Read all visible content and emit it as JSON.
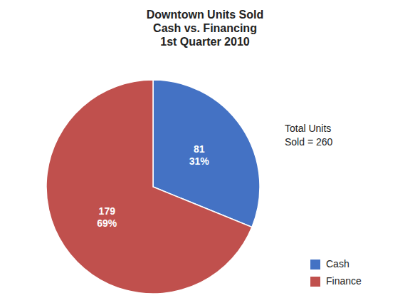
{
  "chart_data": {
    "type": "pie",
    "title": "Downtown Units Sold\nCash vs. Financing\n1st Quarter 2010",
    "categories": [
      "Cash",
      "Finance"
    ],
    "values": [
      81,
      179
    ],
    "value_labels": [
      "81\n31%",
      "179\n69%"
    ],
    "data_labels": true,
    "colors": [
      "#4472C4",
      "#C0504D"
    ],
    "annotation": "Total Units\nSold = 260",
    "legend": "lower right"
  }
}
